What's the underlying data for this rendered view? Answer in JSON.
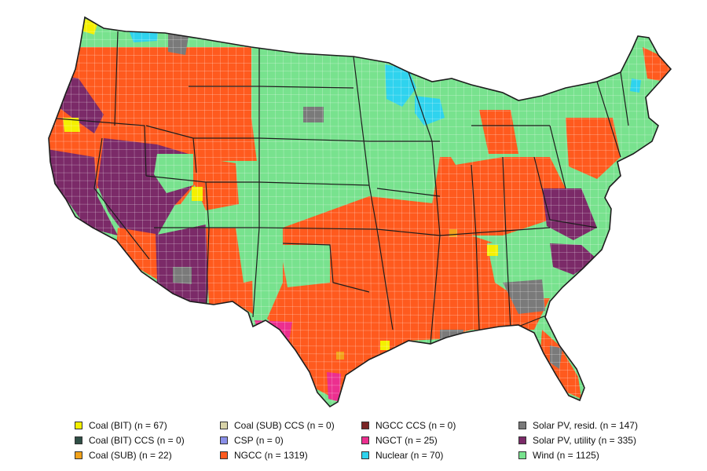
{
  "colors": {
    "coal_bit": "#f4f000",
    "coal_bit_ccs": "#2f4f46",
    "coal_sub": "#f2a21a",
    "coal_sub_ccs": "#d8d3a8",
    "csp": "#8a8fe8",
    "ngcc": "#ff5a1e",
    "ngcc_ccs": "#7a2525",
    "ngct": "#ec2f8f",
    "nuclear": "#2fd3ee",
    "solar_resid": "#7a7a7a",
    "solar_utility": "#7b2a68",
    "wind": "#78e28e",
    "state_border": "#1d1d1d",
    "county_border": "#ffffff"
  },
  "legend": [
    {
      "label": "Coal (BIT) (n = 67)",
      "color_key": "coal_bit"
    },
    {
      "label": "Coal (BIT) CCS (n = 0)",
      "color_key": "coal_bit_ccs"
    },
    {
      "label": "Coal (SUB) (n = 22)",
      "color_key": "coal_sub"
    },
    {
      "label": "Coal (SUB) CCS (n = 0)",
      "color_key": "coal_sub_ccs"
    },
    {
      "label": "CSP (n = 0)",
      "color_key": "csp"
    },
    {
      "label": "NGCC (n = 1319)",
      "color_key": "ngcc"
    },
    {
      "label": "NGCC CCS (n = 0)",
      "color_key": "ngcc_ccs"
    },
    {
      "label": "NGCT (n = 25)",
      "color_key": "ngct"
    },
    {
      "label": "Nuclear (n = 70)",
      "color_key": "nuclear"
    },
    {
      "label": "Solar PV, resid. (n = 147)",
      "color_key": "solar_resid"
    },
    {
      "label": "Solar PV, utility (n = 335)",
      "color_key": "solar_utility"
    },
    {
      "label": "Wind (n = 1125)",
      "color_key": "wind"
    }
  ]
}
